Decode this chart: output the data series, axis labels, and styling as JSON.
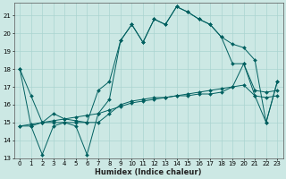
{
  "title": "",
  "xlabel": "Humidex (Indice chaleur)",
  "bg_color": "#cce8e4",
  "grid_color": "#aad4d0",
  "line_color": "#006060",
  "xlim": [
    -0.5,
    23.5
  ],
  "ylim": [
    13,
    21.7
  ],
  "yticks": [
    13,
    14,
    15,
    16,
    17,
    18,
    19,
    20,
    21
  ],
  "xticks": [
    0,
    1,
    2,
    3,
    4,
    5,
    6,
    7,
    8,
    9,
    10,
    11,
    12,
    13,
    14,
    15,
    16,
    17,
    18,
    19,
    20,
    21,
    22,
    23
  ],
  "series": {
    "line1": [
      18.0,
      16.5,
      15.0,
      15.5,
      15.2,
      15.1,
      15.0,
      16.8,
      17.3,
      19.6,
      20.5,
      19.5,
      20.8,
      20.5,
      21.5,
      21.2,
      20.8,
      20.5,
      19.8,
      19.4,
      19.2,
      18.5,
      15.0,
      17.3
    ],
    "line2": [
      14.8,
      14.8,
      15.0,
      15.0,
      15.0,
      15.0,
      15.0,
      15.0,
      15.5,
      16.0,
      16.2,
      16.3,
      16.4,
      16.4,
      16.5,
      16.5,
      16.6,
      16.6,
      16.7,
      17.0,
      18.3,
      16.8,
      16.7,
      16.8
    ],
    "line3": [
      14.8,
      14.9,
      15.0,
      15.1,
      15.2,
      15.3,
      15.4,
      15.5,
      15.7,
      15.9,
      16.1,
      16.2,
      16.3,
      16.4,
      16.5,
      16.6,
      16.7,
      16.8,
      16.9,
      17.0,
      17.1,
      16.5,
      16.4,
      16.5
    ],
    "line4": [
      18.0,
      14.8,
      13.2,
      14.8,
      15.0,
      14.8,
      13.2,
      15.5,
      16.3,
      19.6,
      20.5,
      19.5,
      20.8,
      20.5,
      21.5,
      21.2,
      20.8,
      20.5,
      19.8,
      18.3,
      18.3,
      16.5,
      15.0,
      17.3
    ]
  },
  "marker": "D",
  "marker_size": 2.0,
  "linewidth": 0.7,
  "tick_fontsize": 5.0,
  "xlabel_fontsize": 6.0
}
